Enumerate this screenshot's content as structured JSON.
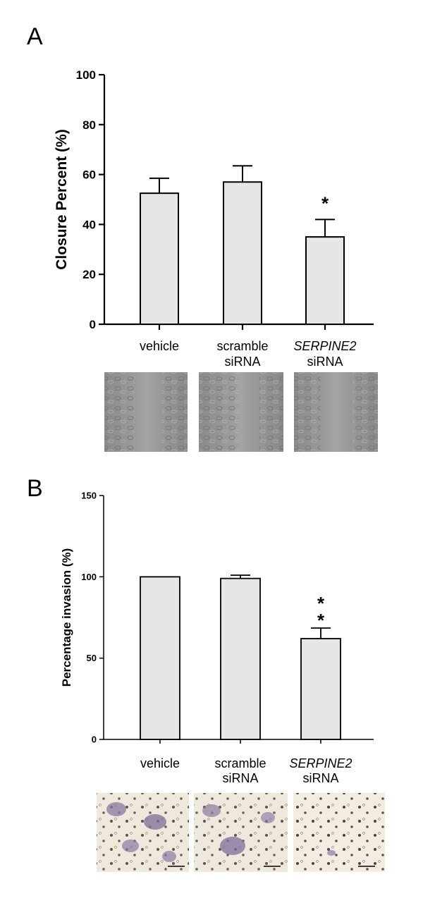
{
  "panels": {
    "a": {
      "letter": "A"
    },
    "b": {
      "letter": "B"
    }
  },
  "chart_data": [
    {
      "type": "bar",
      "panel": "A",
      "ylabel": "Closure Percent (%)",
      "xlabel": "",
      "ylim": [
        0,
        100
      ],
      "yticks": [
        0,
        20,
        40,
        60,
        80,
        100
      ],
      "categories": [
        {
          "lines": [
            "vehicle"
          ],
          "italic_first_line": false
        },
        {
          "lines": [
            "scramble",
            "siRNA"
          ],
          "italic_first_line": false
        },
        {
          "lines": [
            "SERPINE2",
            "siRNA"
          ],
          "italic_first_line": true
        }
      ],
      "values": [
        52.5,
        57,
        35
      ],
      "errors": [
        6,
        6.5,
        7
      ],
      "significance": [
        "",
        "",
        "*"
      ],
      "bar_color": "#e6e6e6",
      "images": [
        "wound-healing-micrograph-vehicle",
        "wound-healing-micrograph-scramble",
        "wound-healing-micrograph-serpine2"
      ]
    },
    {
      "type": "bar",
      "panel": "B",
      "ylabel": "Percentage invasion (%)",
      "xlabel": "",
      "ylim": [
        0,
        150
      ],
      "yticks": [
        0,
        50,
        100,
        150
      ],
      "categories": [
        {
          "lines": [
            "vehicle"
          ],
          "italic_first_line": false
        },
        {
          "lines": [
            "scramble",
            "siRNA"
          ],
          "italic_first_line": false
        },
        {
          "lines": [
            "SERPINE2",
            "siRNA"
          ],
          "italic_first_line": true
        }
      ],
      "values": [
        100,
        99,
        62
      ],
      "errors": [
        0,
        2,
        6.5
      ],
      "significance": [
        "",
        "",
        "**"
      ],
      "bar_color": "#e6e6e6",
      "images": [
        "invasion-micrograph-vehicle",
        "invasion-micrograph-scramble",
        "invasion-micrograph-serpine2"
      ]
    }
  ]
}
